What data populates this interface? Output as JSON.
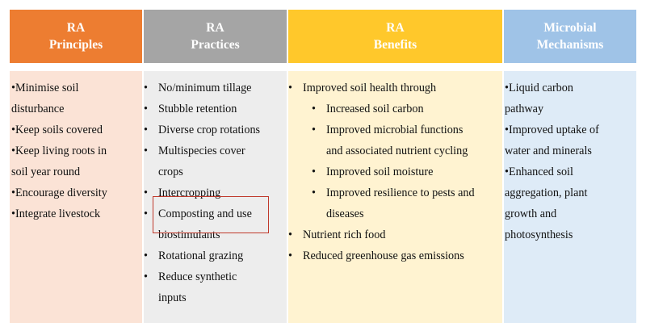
{
  "columns": [
    {
      "title_line1": "RA",
      "title_line2": "Principles",
      "lines": [
        "•Minimise soil",
        "disturbance",
        "•Keep soils covered",
        "•Keep living roots in",
        "soil year round",
        "•Encourage diversity",
        "•Integrate livestock"
      ]
    },
    {
      "title_line1": "RA",
      "title_line2": "Practices",
      "items": [
        "No/minimum tillage",
        "Stubble retention",
        "Diverse crop rotations",
        "Multispecies cover",
        "crops",
        "Intercropping",
        "Composting and use",
        "biostimulants",
        "Rotational grazing",
        "Reduce synthetic",
        "inputs"
      ]
    },
    {
      "title_line1": "RA",
      "title_line2": "Benefits",
      "items": [
        "Improved soil health through",
        "Increased soil carbon",
        "Improved microbial functions",
        "and associated nutrient cycling",
        "Improved soil moisture",
        "Improved resilience to pests and",
        "diseases",
        "Nutrient rich food",
        "Reduced greenhouse gas emissions"
      ]
    },
    {
      "title_line1": "Microbial",
      "title_line2": "Mechanisms",
      "lines": [
        "•Liquid carbon",
        "pathway",
        "•Improved uptake of",
        "water and minerals",
        "•Enhanced soil",
        "aggregation, plant",
        "growth and",
        "photosynthesis"
      ]
    }
  ],
  "colors": {
    "principles_header": "#ed7d31",
    "practices_header": "#a5a5a5",
    "benefits_header": "#ffc82b",
    "mechanisms_header": "#9fc3e7",
    "highlight_border": "#c0392b"
  }
}
